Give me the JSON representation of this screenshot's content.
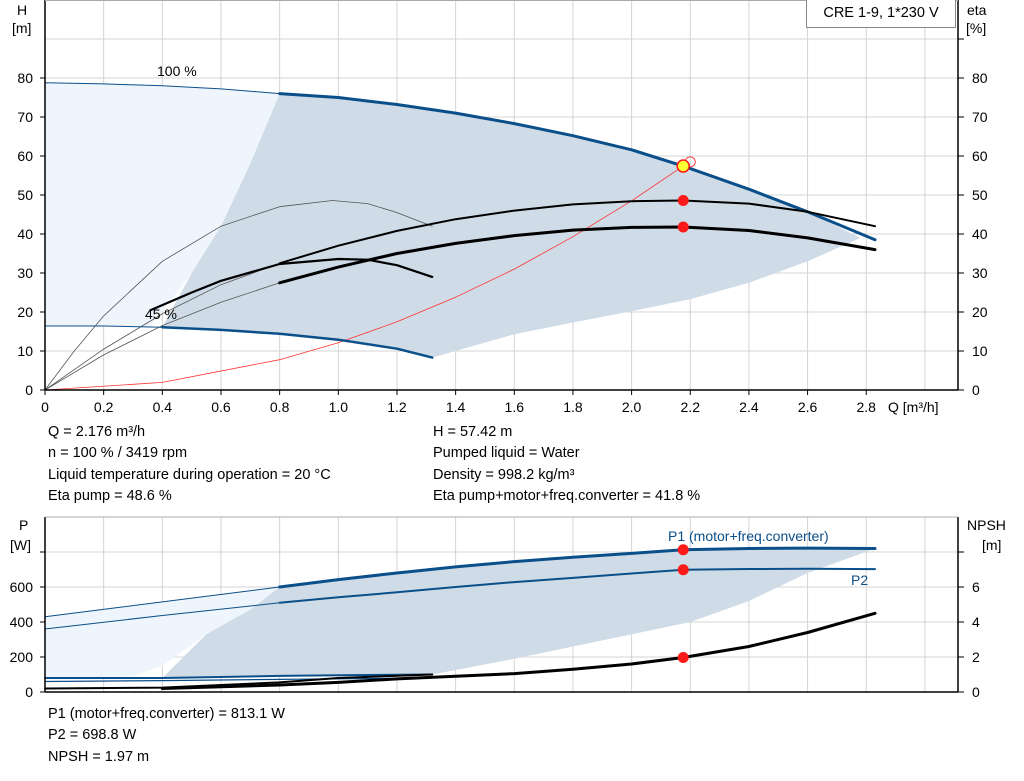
{
  "legend_box": "CRE 1-9, 1*230 V",
  "chart_data": [
    {
      "type": "line",
      "title": "",
      "ylabel": [
        "H",
        "[m]"
      ],
      "y2label": [
        "eta",
        "[%]"
      ],
      "xlabel": "Q [m³/h]",
      "xlim": [
        0,
        3.1
      ],
      "ylim": [
        0,
        100
      ],
      "xticks": [
        "0",
        "0.2",
        "0.4",
        "0.6",
        "0.8",
        "1.0",
        "1.2",
        "1.4",
        "1.6",
        "1.8",
        "2.0",
        "2.2",
        "2.4",
        "2.6",
        "2.8"
      ],
      "yticks": [
        "0",
        "10",
        "20",
        "30",
        "40",
        "50",
        "60",
        "70",
        "80"
      ],
      "y2ticks": [
        "0",
        "10",
        "20",
        "30",
        "40",
        "50",
        "60",
        "70",
        "80"
      ],
      "grid": true,
      "annotations": {
        "speed_max": "100 %",
        "speed_min": "45 %"
      },
      "series": [
        {
          "key": "h100",
          "color": "#0b4f8a",
          "points": [
            [
              0,
              78.8
            ],
            [
              0.2,
              78.5
            ],
            [
              0.4,
              78
            ],
            [
              0.6,
              77.2
            ],
            [
              0.8,
              76
            ],
            [
              1.0,
              75
            ],
            [
              1.2,
              73.2
            ],
            [
              1.4,
              71
            ],
            [
              1.6,
              68.3
            ],
            [
              1.8,
              65.2
            ],
            [
              2.0,
              61.6
            ],
            [
              2.176,
              57.42
            ],
            [
              2.4,
              51.5
            ],
            [
              2.6,
              45.7
            ],
            [
              2.83,
              38.5
            ]
          ]
        },
        {
          "key": "h45",
          "color": "#0b4f8a",
          "points": [
            [
              0,
              16.4
            ],
            [
              0.2,
              16.4
            ],
            [
              0.4,
              16.1
            ],
            [
              0.6,
              15.4
            ],
            [
              0.8,
              14.4
            ],
            [
              1.0,
              12.9
            ],
            [
              1.2,
              10.6
            ],
            [
              1.32,
              8.3
            ]
          ]
        },
        {
          "key": "eta_pump",
          "color": "#000000",
          "points": [
            [
              0.8,
              32.5
            ],
            [
              1.0,
              37
            ],
            [
              1.2,
              40.8
            ],
            [
              1.4,
              43.8
            ],
            [
              1.6,
              46
            ],
            [
              1.8,
              47.6
            ],
            [
              2.0,
              48.4
            ],
            [
              2.176,
              48.6
            ],
            [
              2.4,
              47.8
            ],
            [
              2.6,
              45.7
            ],
            [
              2.83,
              42
            ]
          ]
        },
        {
          "key": "eta_total",
          "color": "#000000",
          "points": [
            [
              0.8,
              27.5
            ],
            [
              1.0,
              31.5
            ],
            [
              1.2,
              35
            ],
            [
              1.4,
              37.6
            ],
            [
              1.6,
              39.6
            ],
            [
              1.8,
              41
            ],
            [
              2.0,
              41.7
            ],
            [
              2.176,
              41.8
            ],
            [
              2.4,
              40.9
            ],
            [
              2.6,
              39
            ],
            [
              2.83,
              36
            ]
          ]
        },
        {
          "key": "eta_45",
          "color": "#000000",
          "points": [
            [
              0.36,
              20.5
            ],
            [
              0.5,
              25
            ],
            [
              0.6,
              28
            ],
            [
              0.8,
              32.3
            ],
            [
              1.0,
              33.6
            ],
            [
              1.1,
              33.4
            ],
            [
              1.2,
              32
            ],
            [
              1.32,
              29
            ]
          ]
        },
        {
          "key": "eta_mid",
          "color": "#555555",
          "points": [
            [
              0,
              0
            ],
            [
              0.1,
              10
            ],
            [
              0.2,
              19
            ],
            [
              0.4,
              33
            ],
            [
              0.6,
              42
            ],
            [
              0.8,
              47
            ],
            [
              0.98,
              48.6
            ],
            [
              1.1,
              47.8
            ],
            [
              1.2,
              45.5
            ],
            [
              1.32,
              42
            ]
          ]
        },
        {
          "key": "eta_ext_a",
          "color": "#555555",
          "points": [
            [
              0,
              0
            ],
            [
              0.2,
              10.5
            ],
            [
              0.4,
              19.5
            ],
            [
              0.6,
              27
            ],
            [
              0.8,
              32.5
            ]
          ]
        },
        {
          "key": "eta_ext_b",
          "color": "#555555",
          "points": [
            [
              0,
              0
            ],
            [
              0.2,
              9
            ],
            [
              0.4,
              16.5
            ],
            [
              0.6,
              22.5
            ],
            [
              0.8,
              27.5
            ]
          ]
        },
        {
          "key": "system",
          "color": "#ff3333",
          "points": [
            [
              0,
              0
            ],
            [
              0.4,
              1.94
            ],
            [
              0.8,
              7.76
            ],
            [
              1.0,
              12.13
            ],
            [
              1.2,
              17.5
            ],
            [
              1.4,
              23.8
            ],
            [
              1.6,
              31
            ],
            [
              1.8,
              39.3
            ],
            [
              2.0,
              48.5
            ],
            [
              2.176,
              57.42
            ]
          ]
        }
      ],
      "region_light": [
        [
          0,
          78.8
        ],
        [
          0.4,
          78
        ],
        [
          0.8,
          76
        ],
        [
          0.7,
          58
        ],
        [
          0.6,
          42
        ],
        [
          0.5,
          30
        ],
        [
          0.36,
          16.2
        ],
        [
          0,
          16.4
        ]
      ],
      "region_dark": [
        [
          0.8,
          76
        ],
        [
          1.0,
          75
        ],
        [
          1.2,
          73.2
        ],
        [
          1.4,
          71
        ],
        [
          1.6,
          68.3
        ],
        [
          1.8,
          65.2
        ],
        [
          2.0,
          61.6
        ],
        [
          2.176,
          57.42
        ],
        [
          2.4,
          51.5
        ],
        [
          2.6,
          45.7
        ],
        [
          2.78,
          39
        ],
        [
          2.6,
          33
        ],
        [
          2.4,
          27.5
        ],
        [
          2.2,
          23.3
        ],
        [
          2.0,
          20.2
        ],
        [
          1.8,
          17.3
        ],
        [
          1.6,
          14.3
        ],
        [
          1.32,
          8.3
        ],
        [
          1.2,
          10.6
        ],
        [
          1.0,
          12.9
        ],
        [
          0.8,
          14.4
        ],
        [
          0.6,
          15.4
        ],
        [
          0.4,
          16.1
        ],
        [
          0.5,
          30
        ],
        [
          0.6,
          42
        ],
        [
          0.7,
          58
        ]
      ],
      "duty_point": {
        "q": 2.176,
        "h": 57.42,
        "eta_pump": 48.6,
        "eta_total": 41.8
      },
      "requested_point": {
        "q": 2.2,
        "h": 58.5
      },
      "colors": {
        "curve": "#0b4f8a",
        "region_dark": "#cfdbe6",
        "region_light": "#eef5fc",
        "marker": "#ff1a1a",
        "duty_fill": "#ffff33"
      }
    },
    {
      "type": "line",
      "ylabel": [
        "P",
        "[W]"
      ],
      "y2label": [
        "NPSH",
        "[m]"
      ],
      "xlim": [
        0,
        3.1
      ],
      "ylim": [
        0,
        1000
      ],
      "y2lim": [
        0,
        10
      ],
      "yticks": [
        "0",
        "200",
        "400",
        "600"
      ],
      "y2ticks": [
        "0",
        "2",
        "4",
        "6"
      ],
      "grid": true,
      "labels": {
        "p1": "P1 (motor+freq.converter)",
        "p2": "P2"
      },
      "series": [
        {
          "key": "p1",
          "color": "#0b4f8a",
          "points": [
            [
              0,
              430
            ],
            [
              0.4,
              515
            ],
            [
              0.8,
              600
            ],
            [
              1.0,
              642
            ],
            [
              1.2,
              680
            ],
            [
              1.4,
              715
            ],
            [
              1.6,
              745
            ],
            [
              1.8,
              770
            ],
            [
              2.0,
              792
            ],
            [
              2.176,
              813.1
            ],
            [
              2.4,
              820
            ],
            [
              2.6,
              822
            ],
            [
              2.83,
              820
            ]
          ]
        },
        {
          "key": "p2",
          "color": "#0b4f8a",
          "points": [
            [
              0,
              360
            ],
            [
              0.4,
              437
            ],
            [
              0.8,
              510
            ],
            [
              1.0,
              541
            ],
            [
              1.2,
              570
            ],
            [
              1.4,
              600
            ],
            [
              1.6,
              628
            ],
            [
              1.8,
              652
            ],
            [
              2.0,
              677
            ],
            [
              2.176,
              698.8
            ],
            [
              2.4,
              703
            ],
            [
              2.6,
              704
            ],
            [
              2.83,
              702
            ]
          ]
        },
        {
          "key": "p1_45",
          "color": "#0b4f8a",
          "points": [
            [
              0,
              80
            ],
            [
              0.4,
              80
            ],
            [
              0.8,
              92
            ],
            [
              1.0,
              96
            ],
            [
              1.32,
              100
            ]
          ]
        },
        {
          "key": "p2_45",
          "color": "#0b4f8a",
          "points": [
            [
              0,
              60
            ],
            [
              0.4,
              65
            ],
            [
              0.8,
              72
            ],
            [
              1.32,
              80
            ]
          ]
        },
        {
          "key": "npsh",
          "color": "#000000",
          "axis": "y2",
          "points": [
            [
              0,
              0.15
            ],
            [
              0.4,
              0.2
            ],
            [
              0.8,
              0.4
            ],
            [
              1.0,
              0.55
            ],
            [
              1.2,
              0.75
            ],
            [
              1.4,
              0.9
            ],
            [
              1.6,
              1.05
            ],
            [
              1.8,
              1.3
            ],
            [
              2.0,
              1.6
            ],
            [
              2.176,
              1.97
            ],
            [
              2.4,
              2.6
            ],
            [
              2.6,
              3.4
            ],
            [
              2.83,
              4.5
            ]
          ]
        },
        {
          "key": "npsh_45",
          "color": "#000000",
          "axis": "y2",
          "points": [
            [
              0,
              0.2
            ],
            [
              0.4,
              0.25
            ],
            [
              0.8,
              0.55
            ],
            [
              1.0,
              0.8
            ],
            [
              1.32,
              1.0
            ]
          ]
        }
      ],
      "region_light": [
        [
          0,
          430
        ],
        [
          0.8,
          600
        ],
        [
          0.7,
          470
        ],
        [
          0.55,
          330
        ],
        [
          0.4,
          150
        ],
        [
          0.3,
          90
        ],
        [
          0,
          80
        ]
      ],
      "region_dark": [
        [
          0.8,
          600
        ],
        [
          1.2,
          680
        ],
        [
          1.6,
          745
        ],
        [
          2.0,
          792
        ],
        [
          2.176,
          813
        ],
        [
          2.4,
          820
        ],
        [
          2.6,
          822
        ],
        [
          2.83,
          820
        ],
        [
          2.6,
          680
        ],
        [
          2.4,
          520
        ],
        [
          2.2,
          400
        ],
        [
          2.0,
          330
        ],
        [
          1.8,
          260
        ],
        [
          1.6,
          190
        ],
        [
          1.32,
          100
        ],
        [
          0.8,
          92
        ],
        [
          0.4,
          80
        ],
        [
          0.55,
          330
        ],
        [
          0.7,
          470
        ]
      ],
      "duty_point": {
        "q": 2.176,
        "p1": 813.1,
        "p2": 698.8,
        "npsh": 1.97
      }
    }
  ],
  "info_top": {
    "left": [
      "Q = 2.176 m³/h",
      "n = 100 % / 3419 rpm",
      "Liquid temperature during operation = 20 °C",
      "Eta pump = 48.6 %"
    ],
    "right": [
      "H = 57.42 m",
      "Pumped liquid = Water",
      "Density = 998.2 kg/m³",
      "Eta pump+motor+freq.converter = 41.8 %"
    ]
  },
  "info_bottom": [
    "P1 (motor+freq.converter) = 813.1 W",
    "P2 = 698.8 W",
    "NPSH = 1.97 m"
  ]
}
